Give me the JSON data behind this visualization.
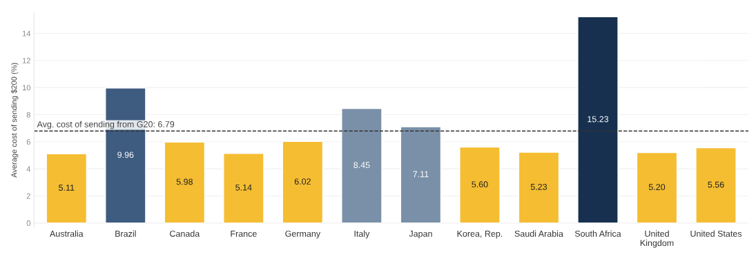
{
  "chart_data": {
    "type": "bar",
    "ylabel": "Average cost of sending $200 (%)",
    "categories": [
      "Australia",
      "Brazil",
      "Canada",
      "France",
      "Germany",
      "Italy",
      "Japan",
      "Korea, Rep.",
      "Saudi Arabia",
      "South Africa",
      "United\nKingdom",
      "United States"
    ],
    "values": [
      5.11,
      9.96,
      5.98,
      5.14,
      6.02,
      8.45,
      7.11,
      5.6,
      5.23,
      15.23,
      5.2,
      5.56
    ],
    "value_labels": [
      "5.11",
      "9.96",
      "5.98",
      "5.14",
      "6.02",
      "8.45",
      "7.11",
      "5.60",
      "5.23",
      "15.23",
      "5.20",
      "5.56"
    ],
    "colors": [
      "#f5bd32",
      "#3e5b80",
      "#f5bd32",
      "#f5bd32",
      "#f5bd32",
      "#7a90a8",
      "#7a90a8",
      "#f5bd32",
      "#f5bd32",
      "#17304f",
      "#f5bd32",
      "#f5bd32"
    ],
    "ylim": [
      -0.3,
      15.5
    ],
    "yticks": [
      0,
      2,
      4,
      6,
      8,
      10,
      12,
      14
    ],
    "grid": "y",
    "ref_lines": [
      {
        "axis": "y",
        "value": 6.79,
        "label": "Avg. cost of sending from G20: 6.79",
        "color": "#333333",
        "line_style": "dashed"
      }
    ]
  }
}
